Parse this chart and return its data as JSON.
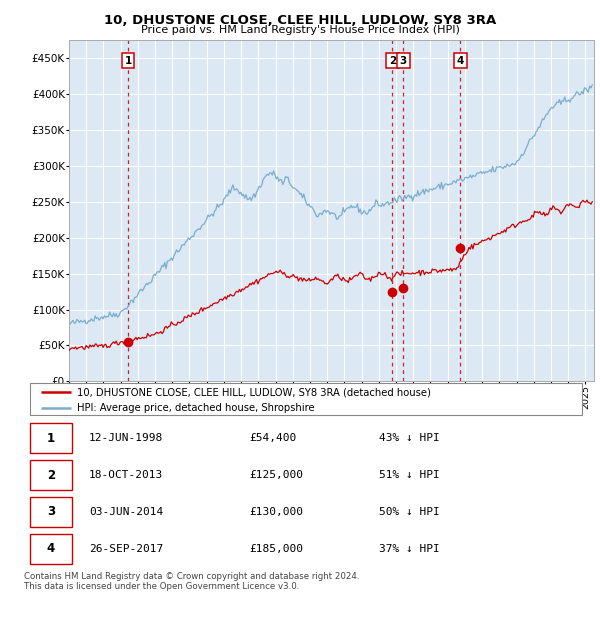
{
  "title": "10, DHUSTONE CLOSE, CLEE HILL, LUDLOW, SY8 3RA",
  "subtitle": "Price paid vs. HM Land Registry's House Price Index (HPI)",
  "background_color": "#ffffff",
  "plot_bg_color": "#dce9f5",
  "red_line_color": "#cc0000",
  "blue_line_color": "#7aadcc",
  "sale_marker_color": "#cc0000",
  "vline_color": "#cc0000",
  "grid_color": "#ffffff",
  "ylim": [
    0,
    475000
  ],
  "yticks": [
    0,
    50000,
    100000,
    150000,
    200000,
    250000,
    300000,
    350000,
    400000,
    450000
  ],
  "sales": [
    {
      "label": "1",
      "date_num": 1998.44,
      "price": 54400
    },
    {
      "label": "2",
      "date_num": 2013.79,
      "price": 125000
    },
    {
      "label": "3",
      "date_num": 2014.42,
      "price": 130000
    },
    {
      "label": "4",
      "date_num": 2017.73,
      "price": 185000
    }
  ],
  "legend_line1": "10, DHUSTONE CLOSE, CLEE HILL, LUDLOW, SY8 3RA (detached house)",
  "legend_line2": "HPI: Average price, detached house, Shropshire",
  "table_data": [
    {
      "num": "1",
      "date": "12-JUN-1998",
      "price": "£54,400",
      "pct": "43% ↓ HPI"
    },
    {
      "num": "2",
      "date": "18-OCT-2013",
      "price": "£125,000",
      "pct": "51% ↓ HPI"
    },
    {
      "num": "3",
      "date": "03-JUN-2014",
      "price": "£130,000",
      "pct": "50% ↓ HPI"
    },
    {
      "num": "4",
      "date": "26-SEP-2017",
      "price": "£185,000",
      "pct": "37% ↓ HPI"
    }
  ],
  "footer": "Contains HM Land Registry data © Crown copyright and database right 2024.\nThis data is licensed under the Open Government Licence v3.0.",
  "xmin": 1995.0,
  "xmax": 2025.5,
  "title_fontsize": 9.5,
  "subtitle_fontsize": 8.0
}
